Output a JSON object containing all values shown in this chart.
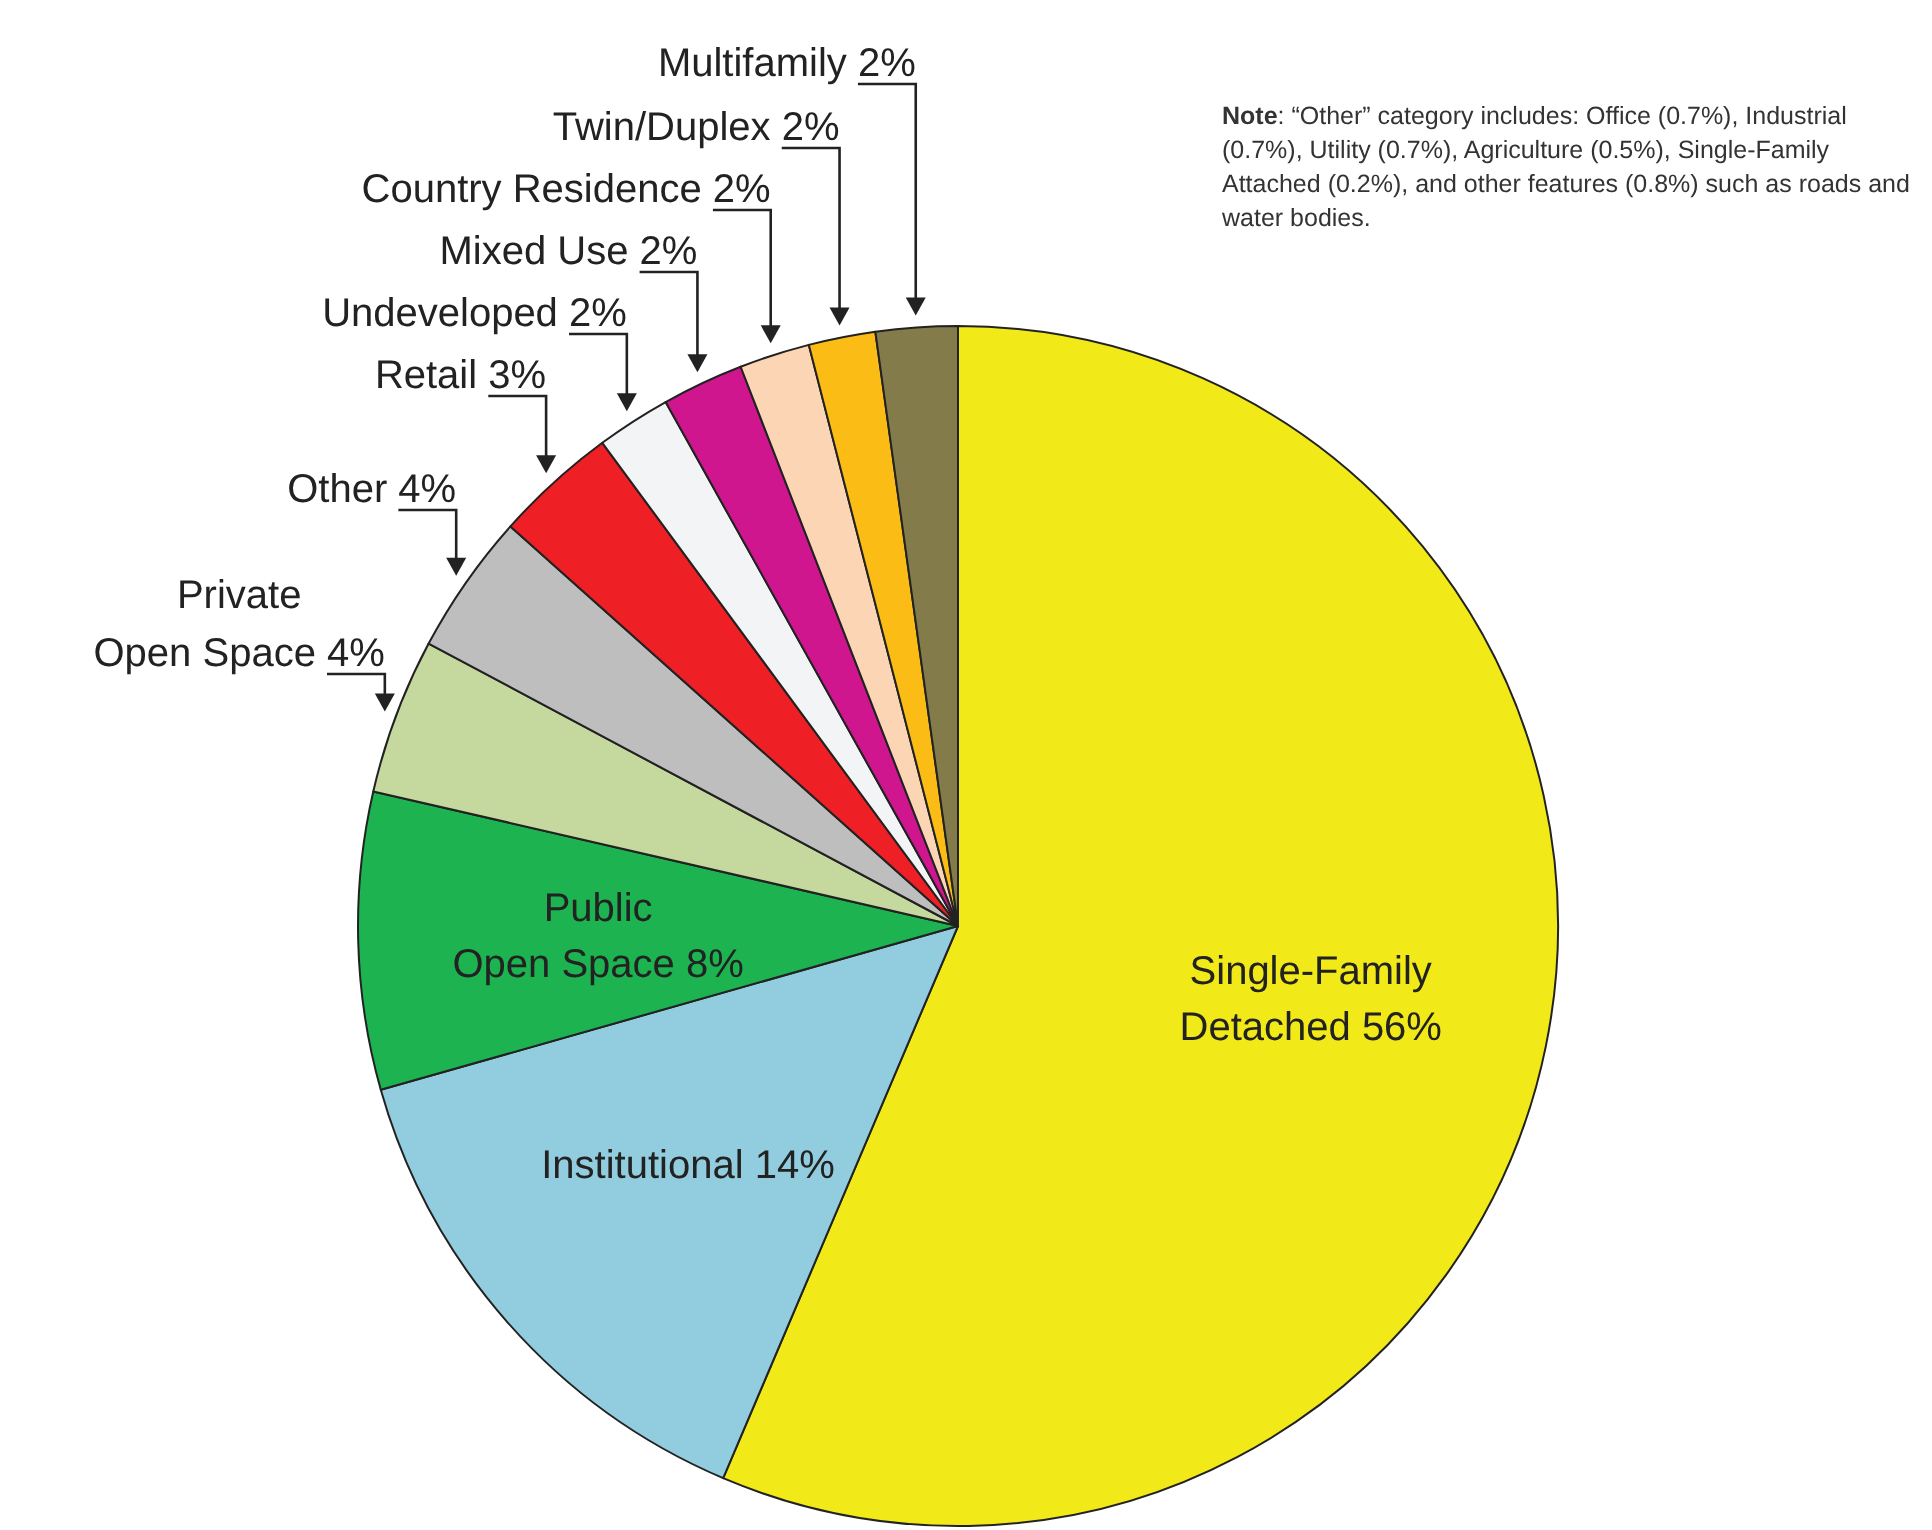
{
  "chart_data": {
    "type": "pie",
    "categories": [
      "Single-Family Detached",
      "Institutional",
      "Public Open Space",
      "Private Open Space",
      "Other",
      "Retail",
      "Undeveloped",
      "Mixed Use",
      "Country Residence",
      "Twin/Duplex",
      "Multifamily"
    ],
    "values": [
      56.4,
      14.2,
      8.0,
      4.2,
      3.8,
      3.3,
      2.0,
      2.2,
      1.9,
      1.8,
      2.2
    ],
    "value_labels": [
      "56%",
      "14%",
      "8%",
      "4%",
      "4%",
      "3%",
      "2%",
      "2%",
      "2%",
      "2%",
      "2%"
    ],
    "colors": [
      "#f2e918",
      "#92cddf",
      "#1db350",
      "#c5d89e",
      "#bebebe",
      "#ee1f25",
      "#f3f4f6",
      "#d0168f",
      "#fcd5b4",
      "#fbbc15",
      "#847b4a"
    ],
    "annotations": [
      "Note: “Other” category includes: Office (0.7%), Industrial (0.7%), Utility (0.7%), Agriculture (0.5%), Single-Family Attached (0.2%), and other features (0.8%) such as roads and water bodies."
    ]
  }
}
